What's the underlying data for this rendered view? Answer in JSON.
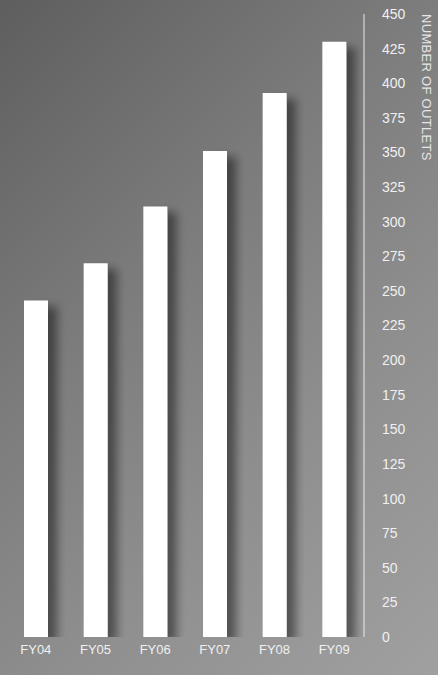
{
  "chart_data": {
    "type": "bar",
    "ylabel": "NUMBER OF OUTLETS",
    "categories": [
      "FY04",
      "FY05",
      "FY06",
      "FY07",
      "FY08",
      "FY09"
    ],
    "values": [
      243,
      270,
      311,
      351,
      393,
      430
    ],
    "color": "#ffffff",
    "ylim": [
      0,
      450
    ],
    "yticks": [
      0,
      25,
      50,
      75,
      100,
      125,
      150,
      175,
      200,
      225,
      250,
      275,
      300,
      325,
      350,
      375,
      400,
      425,
      450
    ],
    "grid": false
  }
}
